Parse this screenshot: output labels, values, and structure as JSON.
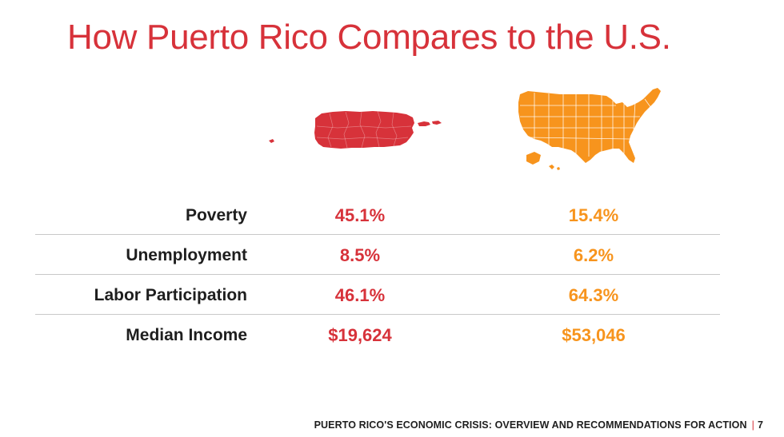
{
  "title": "How Puerto Rico Compares to the U.S.",
  "colors": {
    "puerto_rico": "#d7323a",
    "united_states": "#f7941d",
    "title": "#d7323a",
    "divider": "#c8c8c8"
  },
  "maps": {
    "puerto_rico_icon": "puerto-rico-map",
    "united_states_icon": "united-states-map"
  },
  "chart_data": {
    "type": "table",
    "title": "How Puerto Rico Compares to the U.S.",
    "columns": [
      "Puerto Rico",
      "U.S."
    ],
    "rows": [
      {
        "label": "Poverty",
        "puerto_rico": "45.1%",
        "united_states": "15.4%"
      },
      {
        "label": "Unemployment",
        "puerto_rico": "8.5%",
        "united_states": "6.2%"
      },
      {
        "label": "Labor Participation",
        "puerto_rico": "46.1%",
        "united_states": "64.3%"
      },
      {
        "label": "Median Income",
        "puerto_rico": "$19,624",
        "united_states": "$53,046"
      }
    ]
  },
  "footer": {
    "text": "PUERTO RICO'S ECONOMIC CRISIS: OVERVIEW AND RECOMMENDATIONS FOR ACTION",
    "separator": "|",
    "page_number": "7"
  }
}
